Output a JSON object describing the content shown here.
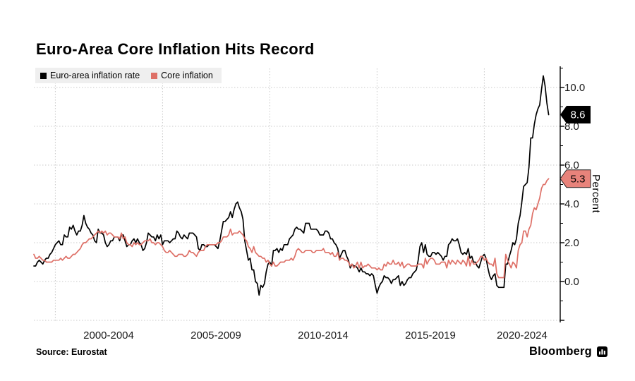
{
  "title": "Euro-Area Core Inflation Hits Record",
  "legend": {
    "items": [
      {
        "label": "Euro-area inflation rate",
        "color": "#000000"
      },
      {
        "label": "Core inflation",
        "color": "#de7067"
      }
    ]
  },
  "y_axis": {
    "label": "Percent",
    "ticks": [
      "10.0",
      "8.0",
      "6.0",
      "4.0",
      "2.0",
      "0.0"
    ]
  },
  "x_axis": {
    "labels": [
      "2000-2004",
      "2005-2009",
      "2010-2014",
      "2015-2019",
      "2020-2024"
    ]
  },
  "badges": [
    {
      "name": "headline-value",
      "text": "8.6",
      "value": 8.6,
      "bg": "#000000",
      "fg": "#ffffff",
      "stroke": ""
    },
    {
      "name": "core-value",
      "text": "5.3",
      "value": 5.3,
      "bg": "#e8837b",
      "fg": "#000000",
      "stroke": "#222222"
    }
  ],
  "source": "Source: Eurostat",
  "brand": {
    "name": "Bloomberg",
    "icon": "bloomberg-terminal-icon"
  },
  "colors": {
    "headline": "#000000",
    "core": "#de7067",
    "grid": "#c9c9c9",
    "legend_bg": "#efefef"
  },
  "chart_data": {
    "type": "line",
    "title": "Euro-Area Core Inflation Hits Record",
    "ylabel": "Percent",
    "frequency": "monthly",
    "x_start": "1999-01",
    "x_end": "2023-01",
    "x_tick_labels": [
      "2000-2004",
      "2005-2009",
      "2010-2014",
      "2015-2019",
      "2020-2024"
    ],
    "ylim": [
      -2.1,
      11.1
    ],
    "y_gridlines": [
      10,
      8,
      6,
      4,
      2,
      0,
      -2
    ],
    "x_gridline_years": [
      2000,
      2005,
      2010,
      2015,
      2020
    ],
    "grid": "dotted",
    "legend_position": "top-left",
    "axis_side": "right",
    "series": [
      {
        "name": "Euro-area inflation rate",
        "color": "#000000",
        "last_value": 8.6,
        "values": [
          0.8,
          0.8,
          1.0,
          1.1,
          1.0,
          0.9,
          1.1,
          1.2,
          1.2,
          1.4,
          1.5,
          1.7,
          1.9,
          2.0,
          2.1,
          1.9,
          1.9,
          2.4,
          2.3,
          2.3,
          2.8,
          2.7,
          2.9,
          2.6,
          2.4,
          2.6,
          2.6,
          2.9,
          3.4,
          3.0,
          2.8,
          2.7,
          2.5,
          2.4,
          2.1,
          2.0,
          2.7,
          2.5,
          2.5,
          2.4,
          2.0,
          1.8,
          1.9,
          2.1,
          2.1,
          2.3,
          2.3,
          2.3,
          2.1,
          2.4,
          2.4,
          2.1,
          1.8,
          1.9,
          1.9,
          2.1,
          2.2,
          2.0,
          2.2,
          2.0,
          1.9,
          1.6,
          1.7,
          2.0,
          2.5,
          2.4,
          2.3,
          2.3,
          2.1,
          2.4,
          2.2,
          2.4,
          1.9,
          2.1,
          2.1,
          2.1,
          2.0,
          2.1,
          2.2,
          2.2,
          2.6,
          2.5,
          2.3,
          2.2,
          2.4,
          2.3,
          2.2,
          2.5,
          2.5,
          2.5,
          2.4,
          2.3,
          1.7,
          1.6,
          1.9,
          1.9,
          1.8,
          1.8,
          1.9,
          1.9,
          1.9,
          1.9,
          1.8,
          1.7,
          2.1,
          2.6,
          3.1,
          3.1,
          3.2,
          3.3,
          3.6,
          3.3,
          3.7,
          4.0,
          4.1,
          3.8,
          3.6,
          3.2,
          2.1,
          1.6,
          1.1,
          1.2,
          0.6,
          0.6,
          0.0,
          -0.1,
          -0.7,
          -0.2,
          -0.3,
          -0.1,
          0.5,
          0.9,
          1.0,
          0.8,
          1.6,
          1.6,
          1.7,
          1.5,
          1.7,
          1.6,
          1.9,
          1.9,
          1.9,
          2.2,
          2.3,
          2.4,
          2.7,
          2.8,
          2.7,
          2.7,
          2.6,
          2.5,
          3.0,
          3.0,
          3.0,
          2.7,
          2.7,
          2.7,
          2.7,
          2.6,
          2.4,
          2.4,
          2.4,
          2.6,
          2.6,
          2.5,
          2.2,
          2.2,
          2.0,
          1.9,
          1.7,
          1.2,
          1.4,
          1.6,
          1.6,
          1.3,
          1.1,
          0.7,
          0.9,
          0.8,
          0.8,
          0.7,
          0.5,
          0.7,
          0.5,
          0.5,
          0.4,
          0.4,
          0.3,
          0.4,
          0.3,
          -0.2,
          -0.6,
          -0.3,
          -0.1,
          0.0,
          0.3,
          0.2,
          0.2,
          0.1,
          -0.1,
          0.1,
          0.1,
          0.2,
          0.3,
          -0.2,
          0.0,
          -0.2,
          -0.1,
          0.1,
          0.2,
          0.2,
          0.4,
          0.5,
          0.6,
          1.1,
          1.8,
          2.0,
          1.5,
          1.9,
          1.4,
          1.3,
          1.3,
          1.5,
          1.5,
          1.4,
          1.5,
          1.4,
          1.3,
          1.1,
          1.3,
          1.3,
          1.9,
          2.0,
          2.2,
          2.1,
          2.1,
          2.2,
          1.9,
          1.5,
          1.4,
          1.5,
          1.4,
          1.7,
          1.2,
          1.3,
          1.0,
          1.0,
          0.8,
          0.7,
          1.0,
          1.3,
          1.4,
          1.2,
          0.7,
          0.3,
          0.1,
          0.3,
          0.4,
          -0.2,
          -0.3,
          -0.3,
          -0.3,
          -0.3,
          0.9,
          0.9,
          1.3,
          1.6,
          2.0,
          1.9,
          2.2,
          3.0,
          3.4,
          4.1,
          4.9,
          5.0,
          5.1,
          5.9,
          7.4,
          7.4,
          8.1,
          8.6,
          8.9,
          9.1,
          9.9,
          10.6,
          10.1,
          9.2,
          8.6
        ]
      },
      {
        "name": "Core inflation",
        "color": "#de7067",
        "last_value": 5.3,
        "values": [
          1.4,
          1.2,
          1.2,
          1.3,
          1.2,
          1.1,
          1.1,
          1.0,
          1.0,
          1.0,
          1.0,
          1.1,
          1.1,
          1.1,
          1.1,
          1.2,
          1.1,
          1.2,
          1.3,
          1.2,
          1.2,
          1.3,
          1.4,
          1.4,
          1.5,
          1.6,
          1.7,
          1.9,
          2.0,
          2.0,
          2.1,
          2.2,
          2.2,
          2.3,
          2.4,
          2.5,
          2.6,
          2.5,
          2.6,
          2.5,
          2.6,
          2.4,
          2.5,
          2.5,
          2.4,
          2.3,
          2.3,
          2.3,
          2.2,
          2.5,
          2.2,
          2.3,
          2.0,
          1.9,
          1.9,
          1.8,
          2.0,
          1.9,
          2.0,
          1.9,
          1.9,
          2.0,
          2.1,
          2.1,
          2.1,
          2.2,
          2.0,
          2.0,
          1.9,
          2.0,
          2.0,
          1.9,
          1.8,
          1.6,
          1.5,
          1.5,
          1.6,
          1.5,
          1.4,
          1.3,
          1.3,
          1.4,
          1.4,
          1.4,
          1.3,
          1.3,
          1.4,
          1.6,
          1.5,
          1.5,
          1.4,
          1.3,
          1.5,
          1.6,
          1.6,
          1.6,
          1.8,
          1.9,
          1.9,
          1.9,
          1.9,
          1.9,
          1.9,
          2.0,
          2.0,
          2.1,
          2.3,
          2.3,
          2.3,
          2.4,
          2.7,
          2.4,
          2.5,
          2.5,
          2.5,
          2.6,
          2.5,
          2.4,
          2.2,
          2.1,
          1.8,
          1.7,
          1.5,
          1.8,
          1.5,
          1.4,
          1.3,
          1.3,
          1.2,
          1.2,
          1.0,
          1.1,
          0.9,
          0.8,
          1.0,
          0.8,
          0.8,
          0.9,
          1.0,
          1.0,
          1.0,
          1.1,
          1.1,
          1.1,
          1.2,
          1.1,
          1.3,
          1.6,
          1.7,
          1.6,
          1.5,
          1.5,
          1.6,
          1.6,
          1.6,
          1.6,
          1.5,
          1.5,
          1.6,
          1.6,
          1.6,
          1.6,
          1.7,
          1.5,
          1.5,
          1.5,
          1.4,
          1.5,
          1.3,
          1.3,
          1.5,
          1.1,
          1.2,
          1.2,
          1.1,
          1.1,
          1.0,
          0.8,
          0.9,
          0.7,
          0.8,
          1.0,
          0.7,
          1.0,
          0.7,
          0.8,
          0.8,
          0.9,
          0.8,
          0.7,
          0.7,
          0.7,
          0.6,
          0.7,
          0.6,
          0.6,
          0.9,
          0.8,
          1.0,
          0.9,
          0.9,
          1.1,
          0.9,
          0.9,
          1.0,
          0.8,
          1.0,
          0.7,
          0.8,
          0.9,
          0.9,
          0.8,
          0.8,
          0.8,
          0.8,
          0.9,
          0.9,
          0.9,
          0.7,
          1.2,
          0.9,
          1.1,
          1.2,
          1.2,
          1.1,
          0.9,
          0.9,
          0.9,
          1.0,
          1.0,
          1.0,
          0.7,
          1.1,
          0.9,
          1.1,
          1.0,
          0.9,
          1.1,
          1.0,
          0.9,
          1.1,
          1.0,
          0.8,
          1.3,
          0.8,
          1.1,
          0.9,
          0.9,
          1.0,
          1.1,
          1.3,
          1.3,
          1.1,
          1.2,
          1.0,
          0.9,
          0.9,
          0.8,
          1.2,
          0.4,
          0.2,
          0.2,
          0.2,
          0.2,
          1.4,
          1.1,
          0.9,
          0.7,
          1.0,
          0.9,
          0.7,
          1.6,
          1.9,
          2.0,
          2.6,
          2.6,
          2.3,
          2.7,
          2.9,
          3.5,
          3.8,
          3.7,
          4.0,
          4.3,
          4.8,
          5.0,
          5.0,
          5.2,
          5.3
        ]
      }
    ]
  }
}
